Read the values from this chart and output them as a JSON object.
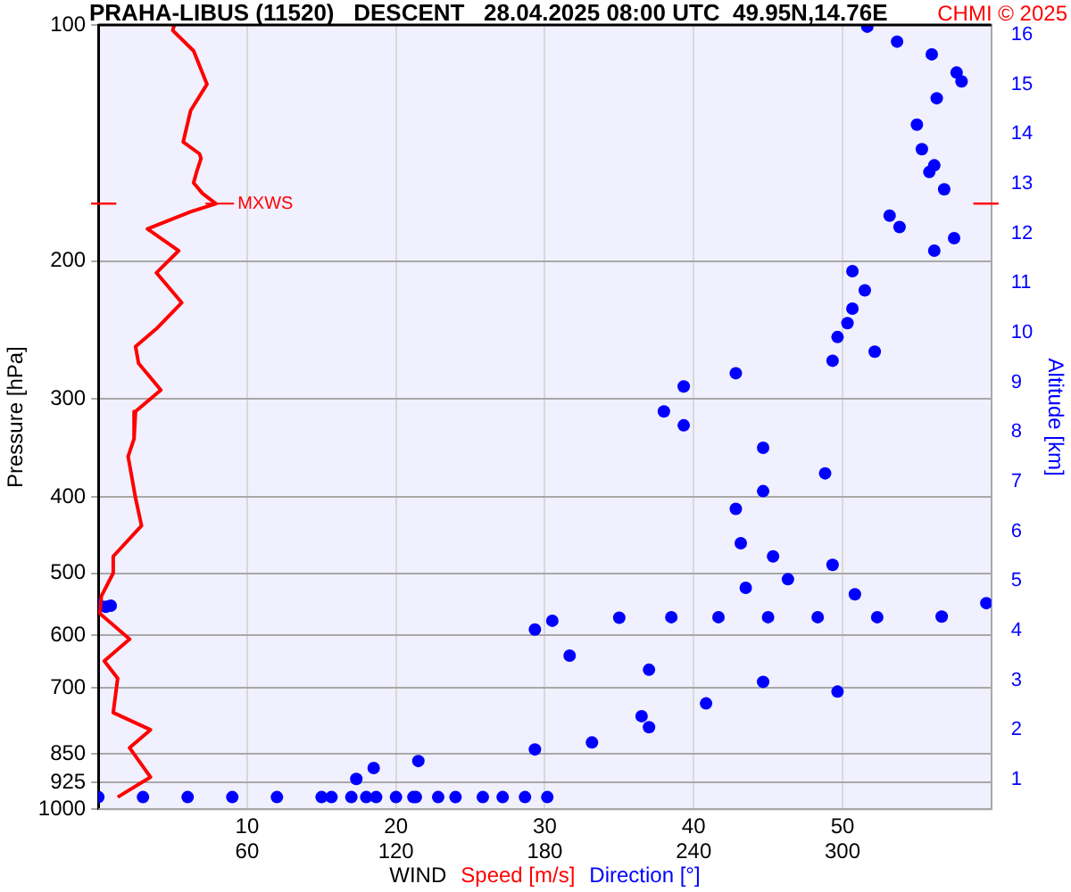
{
  "chart_data": {
    "type": "line",
    "orientation": "horizontal",
    "title": "PRAHA-LIBUS (11520)   DESCENT   28.04.2025 08:00 UTC  49.95N,14.76E",
    "xlabel": "WIND",
    "ylabel": "Pressure [hPa]",
    "y2label": "Altitude [km]",
    "annotations": [
      "CHMI © 2025"
    ],
    "log": "y",
    "grid": true,
    "legend": false,
    "xlim": [
      0,
      60
    ],
    "xticks": [
      10,
      20,
      30,
      40,
      50
    ],
    "x2lim": [
      0,
      360
    ],
    "x2ticks": [
      60,
      120,
      180,
      240,
      300
    ],
    "ylim": [
      1000,
      100
    ],
    "yticks": [
      100,
      200,
      300,
      400,
      500,
      600,
      700,
      850,
      925,
      1000
    ],
    "y2lim": [
      0.4,
      16.2
    ],
    "y2ticks": [
      1,
      2,
      3,
      4,
      5,
      6,
      7,
      8,
      9,
      10,
      11,
      12,
      13,
      14,
      15,
      16
    ],
    "ref_lines": [
      {
        "axis": "y",
        "value": 169,
        "label": "MXWS",
        "color": "#ff0000"
      }
    ],
    "series": [
      {
        "name": "Speed [m/s]",
        "color": "#ff0000",
        "marker": "none",
        "line_style": "solid",
        "values": [
          5.1,
          5.0,
          6.4,
          7.3,
          6.2,
          5.7,
          6.8,
          6.9,
          6.6,
          6.4,
          7.0,
          7.9,
          6.2,
          3.3,
          5.4,
          3.9,
          5.6,
          3.9,
          2.5,
          2.7,
          4.2,
          2.5,
          2.4,
          2.0,
          2.5,
          2.9,
          1.0,
          1.0,
          0.2,
          0.1,
          2.1,
          0.4,
          1.3,
          1.0,
          3.5,
          2.1,
          3.5,
          1.3
        ],
        "x": [
          100,
          101.6,
          107.9,
          119,
          128.6,
          141,
          146,
          148,
          154,
          159,
          164,
          169,
          173,
          182,
          194,
          207,
          226,
          244,
          257,
          270,
          292,
          311,
          337,
          355,
          401,
          435,
          476,
          500,
          535,
          563,
          607,
          647,
          681,
          753,
          792,
          835,
          910,
          965
        ]
      },
      {
        "name": "Direction [°]",
        "type": "scatter",
        "axis": "x2",
        "color": "#0000ff",
        "marker": "circle",
        "values": [
          310,
          322,
          336,
          346,
          348,
          338,
          330,
          332,
          337,
          335,
          341,
          319,
          323,
          345,
          337,
          304,
          309,
          304,
          302,
          298,
          313,
          296,
          257,
          236,
          228,
          236,
          268,
          293,
          268,
          257,
          259,
          272,
          296,
          278,
          261,
          305,
          358,
          0,
          3,
          5,
          340,
          314,
          290,
          270,
          250,
          231,
          210,
          183,
          176,
          190,
          222,
          268,
          298,
          245,
          219,
          222,
          199,
          176,
          129,
          111,
          104,
          94,
          0,
          18,
          36,
          54,
          72,
          90,
          102,
          108,
          112,
          120,
          127,
          128,
          137,
          144,
          155,
          163,
          172,
          181
        ],
        "x": [
          100.5,
          105,
          109,
          115,
          118,
          124,
          134,
          144,
          151,
          154,
          162,
          175,
          181,
          187,
          194,
          206,
          218,
          230,
          240,
          250,
          261,
          268,
          278,
          289,
          311,
          324,
          346,
          373,
          393,
          414,
          458,
          476,
          488,
          509,
          522,
          532,
          546,
          548,
          552,
          550,
          568,
          569,
          569,
          569,
          569,
          569,
          570,
          575,
          590,
          637,
          664,
          688,
          708,
          733,
          761,
          786,
          822,
          839,
          868,
          886,
          915,
          965,
          965,
          965,
          965,
          965,
          965,
          965,
          965,
          965,
          965,
          965,
          965,
          965,
          965,
          965,
          965,
          965,
          965,
          965
        ]
      }
    ]
  }
}
